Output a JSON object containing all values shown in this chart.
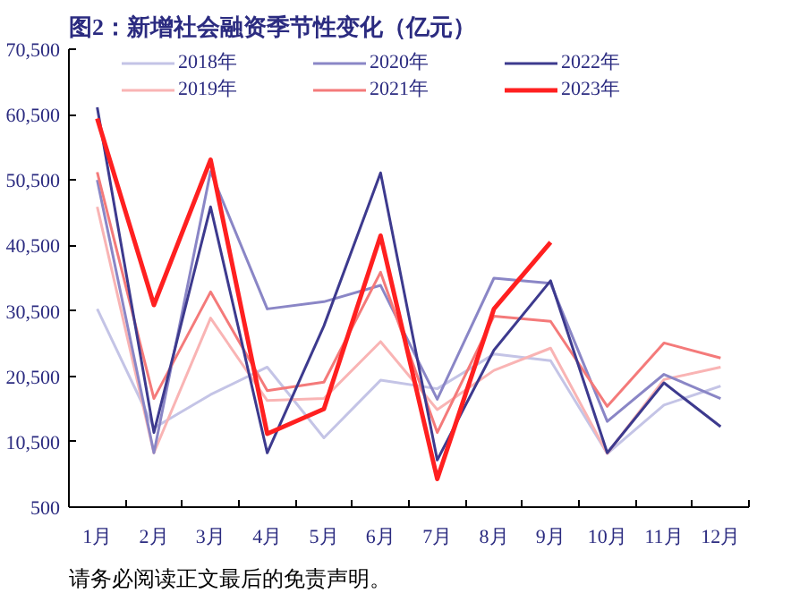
{
  "chart_data": {
    "type": "line",
    "title": "图2：新增社会融资季节性变化（亿元）",
    "categories": [
      "1月",
      "2月",
      "3月",
      "4月",
      "5月",
      "6月",
      "7月",
      "8月",
      "9月",
      "10月",
      "11月",
      "12月"
    ],
    "series": [
      {
        "name": "2018年",
        "color": "#c4c4e6",
        "values": [
          30800,
          12600,
          17700,
          21900,
          11100,
          19900,
          18600,
          23900,
          22900,
          8700,
          16100,
          19000
        ]
      },
      {
        "name": "2019年",
        "color": "#f9b4b4",
        "values": [
          46400,
          8800,
          29400,
          16800,
          17100,
          25800,
          15400,
          21400,
          24800,
          8700,
          20000,
          21900
        ]
      },
      {
        "name": "2020年",
        "color": "#8a86c6",
        "values": [
          50500,
          8800,
          51800,
          30800,
          31900,
          34400,
          17000,
          35500,
          34700,
          13600,
          20800,
          17100
        ]
      },
      {
        "name": "2021年",
        "color": "#f47a7a",
        "values": [
          51700,
          17100,
          33400,
          18300,
          19600,
          36400,
          11900,
          29700,
          28900,
          15900,
          25600,
          23300
        ]
      },
      {
        "name": "2022年",
        "color": "#3d3a8e",
        "values": [
          61600,
          11900,
          46400,
          8800,
          28200,
          51600,
          7700,
          24500,
          35100,
          8800,
          19500,
          12800
        ]
      },
      {
        "name": "2023年",
        "color": "#ff2020",
        "values": [
          59900,
          31400,
          53600,
          11700,
          15500,
          42000,
          4800,
          30800,
          41000,
          null,
          null,
          null
        ]
      }
    ],
    "ylim": [
      500,
      70500
    ],
    "yticks": [
      {
        "value": 500,
        "label": "500"
      },
      {
        "value": 10500,
        "label": "10,500"
      },
      {
        "value": 20500,
        "label": "20,500"
      },
      {
        "value": 30500,
        "label": "30,500"
      },
      {
        "value": 40500,
        "label": "40,500"
      },
      {
        "value": 50500,
        "label": "50,500"
      },
      {
        "value": 60500,
        "label": "60,500"
      },
      {
        "value": 70500,
        "label": "70,500"
      }
    ],
    "legend": "top",
    "grid": false,
    "annotations": [
      "请务必阅读正文最后的免责声明。"
    ]
  }
}
